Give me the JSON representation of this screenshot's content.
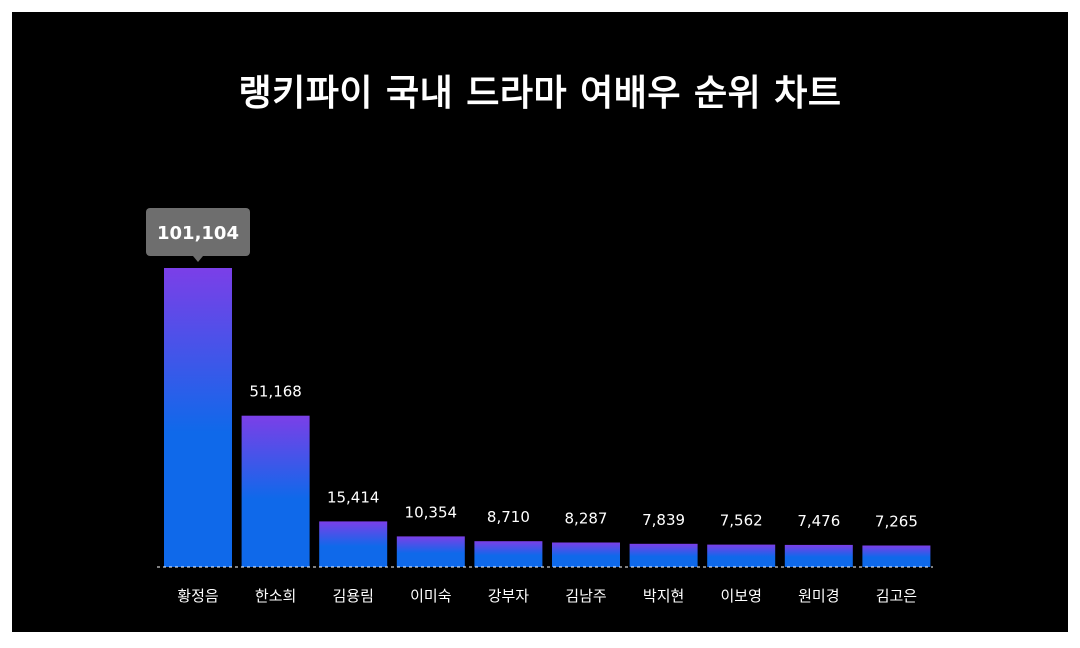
{
  "chart_data": {
    "type": "bar",
    "title": "랭키파이 국내 드라마 여배우 순위 차트",
    "categories": [
      "황정음",
      "한소희",
      "김용림",
      "이미숙",
      "강부자",
      "김남주",
      "박지현",
      "이보영",
      "원미경",
      "김고은"
    ],
    "values": [
      101104,
      51168,
      15414,
      10354,
      8710,
      8287,
      7839,
      7562,
      7476,
      7265
    ],
    "value_labels": [
      "101,104",
      "51,168",
      "15,414",
      "10,354",
      "8,710",
      "8,287",
      "7,839",
      "7,562",
      "7,476",
      "7,265"
    ],
    "highlighted_value_label": "101,104",
    "ylim": [
      0,
      101104
    ],
    "grid": false,
    "legend": "none"
  },
  "colors": {
    "background": "#000000",
    "frame": "#ffffff",
    "bar_top": "#7b3fe8",
    "bar_bottom": "#0f69ea",
    "text": "#ffffff",
    "tooltip": "#6e6e6e",
    "baseline": "#ffffff"
  }
}
